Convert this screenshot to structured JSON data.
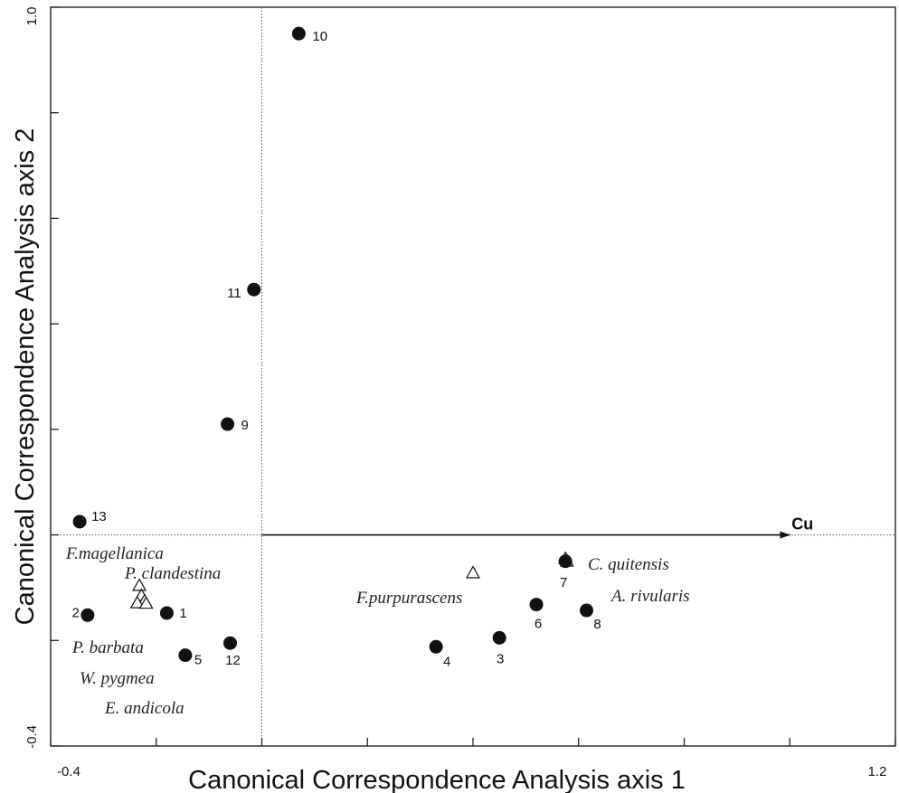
{
  "chart_data": {
    "type": "scatter",
    "title": "",
    "xlabel": "Canonical Correspondence Analysis axis 1",
    "ylabel": "Canonical Correspondence Analysis axis 2",
    "xlim": [
      -0.4,
      1.2
    ],
    "ylim": [
      -0.4,
      1.0
    ],
    "x_tick_labels": [
      {
        "value": -0.4,
        "label": "-0.4"
      },
      {
        "value": 1.2,
        "label": "1.2"
      }
    ],
    "y_tick_labels": [
      {
        "value": -0.4,
        "label": "-0.4"
      },
      {
        "value": 1.0,
        "label": "1.0"
      }
    ],
    "x_ticks": [
      -0.4,
      -0.2,
      0.0,
      0.2,
      0.4,
      0.6,
      0.8,
      1.0,
      1.2
    ],
    "y_ticks": [
      -0.4,
      -0.2,
      0.0,
      0.2,
      0.4,
      0.6,
      0.8,
      1.0
    ],
    "reference_lines": {
      "x": 0.0,
      "y": 0.0
    },
    "sites": [
      {
        "label": "1",
        "x": -0.18,
        "y": -0.148
      },
      {
        "label": "2",
        "x": -0.33,
        "y": -0.152
      },
      {
        "label": "3",
        "x": 0.45,
        "y": -0.195
      },
      {
        "label": "4",
        "x": 0.33,
        "y": -0.212
      },
      {
        "label": "5",
        "x": -0.145,
        "y": -0.228
      },
      {
        "label": "6",
        "x": 0.52,
        "y": -0.132
      },
      {
        "label": "7",
        "x": 0.575,
        "y": -0.05
      },
      {
        "label": "8",
        "x": 0.615,
        "y": -0.143
      },
      {
        "label": "9",
        "x": -0.065,
        "y": 0.21
      },
      {
        "label": "10",
        "x": 0.07,
        "y": 0.95
      },
      {
        "label": "11",
        "x": -0.015,
        "y": 0.465
      },
      {
        "label": "12",
        "x": -0.06,
        "y": -0.205
      },
      {
        "label": "13",
        "x": -0.345,
        "y": 0.025
      }
    ],
    "species": [
      {
        "name": "F.magellanica",
        "x": -0.232,
        "y": -0.096
      },
      {
        "name": "P. clandestina",
        "x": -0.228,
        "y": -0.115
      },
      {
        "name": "P. barbata",
        "x": -0.222,
        "y": -0.125
      },
      {
        "name": "W. pygmea",
        "x": -0.236,
        "y": -0.129
      },
      {
        "name": "E. andicola",
        "x": -0.219,
        "y": -0.13
      },
      {
        "name": "F.purpurascens",
        "x": 0.4,
        "y": -0.072
      },
      {
        "name": "C. quitensis",
        "x": 0.575,
        "y": -0.045
      },
      {
        "name": "A. rivularis",
        "x": 0.578,
        "y": -0.05
      }
    ],
    "vectors": [
      {
        "name": "Cu",
        "x0": 0.0,
        "y0": 0.0,
        "x1": 1.0,
        "y1": 0.0
      }
    ]
  }
}
